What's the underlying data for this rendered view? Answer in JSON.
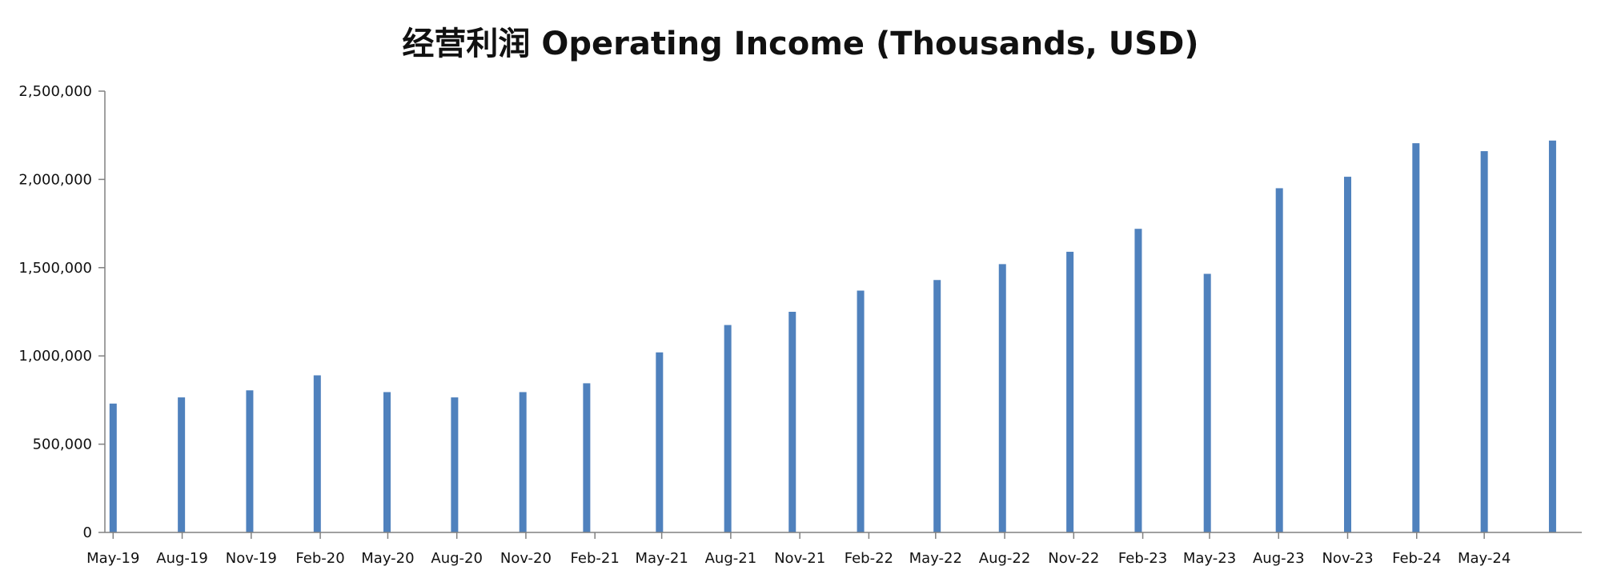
{
  "chart_data": {
    "type": "bar",
    "title": "经营利润 Operating Income (Thousands, USD)",
    "xlabel": "",
    "ylabel": "",
    "grid": false,
    "legend": "none",
    "color": "#4f81bd",
    "ylim": [
      0,
      2500000
    ],
    "yticks": [
      0,
      500000,
      1000000,
      1500000,
      2000000,
      2500000
    ],
    "ytick_labels": [
      "0",
      "500,000",
      "1,000,000",
      "1,500,000",
      "2,000,000",
      "2,500,000"
    ],
    "xlim": [
      "2019-04-20",
      "2024-09-08"
    ],
    "xticks": [
      "2019-05-01",
      "2019-08-01",
      "2019-11-01",
      "2020-02-01",
      "2020-05-01",
      "2020-08-01",
      "2020-11-01",
      "2021-02-01",
      "2021-05-01",
      "2021-08-01",
      "2021-11-01",
      "2022-02-01",
      "2022-05-01",
      "2022-08-01",
      "2022-11-01",
      "2023-02-01",
      "2023-05-01",
      "2023-08-01",
      "2023-11-01",
      "2024-02-01",
      "2024-05-01"
    ],
    "xtick_labels": [
      "May-19",
      "Aug-19",
      "Nov-19",
      "Feb-20",
      "May-20",
      "Aug-20",
      "Nov-20",
      "Feb-21",
      "May-21",
      "Aug-21",
      "Nov-21",
      "Feb-22",
      "May-22",
      "Aug-22",
      "Nov-22",
      "Feb-23",
      "May-23",
      "Aug-23",
      "Nov-23",
      "Feb-24",
      "May-24"
    ],
    "dates": [
      "2019-05-01",
      "2019-07-31",
      "2019-10-30",
      "2020-01-28",
      "2020-04-30",
      "2020-07-29",
      "2020-10-28",
      "2021-01-21",
      "2021-04-28",
      "2021-07-28",
      "2021-10-22",
      "2022-01-21",
      "2022-05-03",
      "2022-07-29",
      "2022-10-27",
      "2023-01-26",
      "2023-04-28",
      "2023-08-02",
      "2023-11-01",
      "2024-01-31",
      "2024-05-01",
      "2024-07-31"
    ],
    "values": [
      730000,
      765000,
      805000,
      890000,
      795000,
      765000,
      795000,
      845000,
      1020000,
      1175000,
      1250000,
      1370000,
      1430000,
      1520000,
      1590000,
      1720000,
      1465000,
      1950000,
      2015000,
      2205000,
      2160000,
      2220000
    ]
  }
}
